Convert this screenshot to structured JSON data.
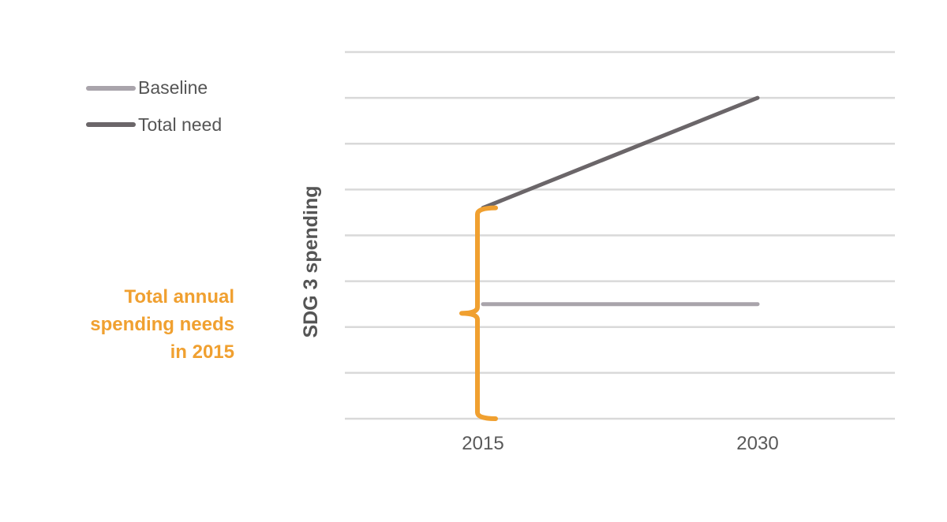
{
  "chart_data": {
    "type": "line",
    "x": [
      "2015",
      "2030"
    ],
    "ylabel": "SDG 3 spending",
    "ylim": [
      0,
      8
    ],
    "grid": true,
    "legend_position": "top-left",
    "series": [
      {
        "name": "Baseline",
        "values": [
          2.5,
          2.5
        ],
        "color": "#a9a4ab"
      },
      {
        "name": "Total need",
        "values": [
          4.6,
          7.0
        ],
        "color": "#6b6669"
      }
    ],
    "annotation": {
      "lines": [
        "Total annual",
        "spending needs",
        "in 2015"
      ],
      "range": [
        0,
        4.6
      ],
      "color": "#f0a030"
    }
  }
}
